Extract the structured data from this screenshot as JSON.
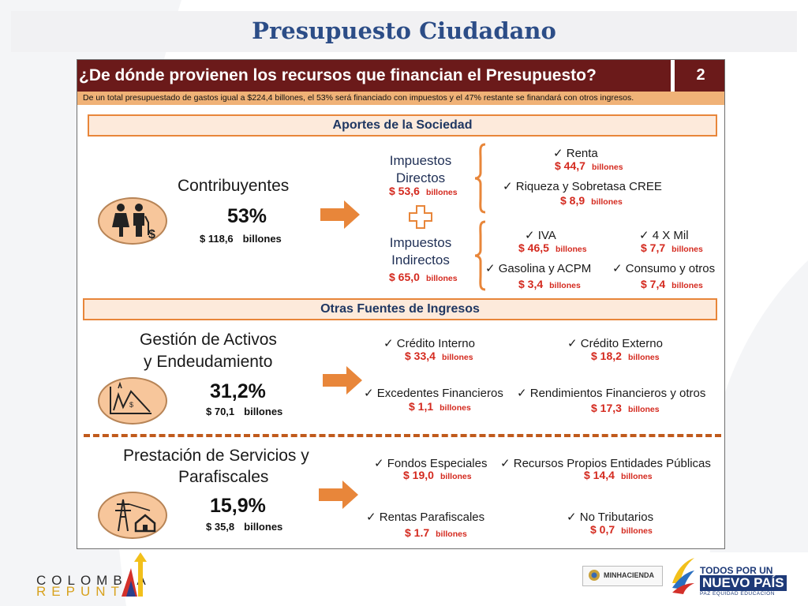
{
  "page": {
    "title": "Presupuesto Ciudadano"
  },
  "header": {
    "question": "¿De dónde provienen los recursos que financian el Presupuesto?",
    "number": "2",
    "summary": "De un total presupuestado de gastos igual a $224,4 billones, el 53% será financiado con impuestos y el 47% restante se finandará con otros ingresos."
  },
  "sections": {
    "aportes": "Aportes de la Sociedad",
    "otras": "Otras Fuentes de Ingresos"
  },
  "contribuyentes": {
    "title": "Contribuyentes",
    "pct": "53%",
    "amount": "$ 118,6",
    "unit": "billones"
  },
  "impuestos": {
    "directos": {
      "label1": "Impuestos",
      "label2": "Directos",
      "amount": "$ 53,6",
      "unit": "billones"
    },
    "indirectos": {
      "label1": "Impuestos",
      "label2": "Indirectos",
      "amount": "$ 65,0",
      "unit": "billones"
    },
    "renta": {
      "label": "✓ Renta",
      "amount": "$ 44,7",
      "unit": "billones"
    },
    "riqueza": {
      "label": "✓ Riqueza y Sobretasa CREE",
      "amount": "$ 8,9",
      "unit": "billones"
    },
    "iva": {
      "label": "✓ IVA",
      "amount": "$ 46,5",
      "unit": "billones"
    },
    "cuatro_mil": {
      "label": "✓ 4 X Mil",
      "amount": "$ 7,7",
      "unit": "billones"
    },
    "gasolina": {
      "label": "✓ Gasolina y ACPM",
      "amount": "$ 3,4",
      "unit": "billones"
    },
    "consumo": {
      "label": "✓ Consumo y otros",
      "amount": "$ 7,4",
      "unit": "billones"
    }
  },
  "gestion": {
    "title1": "Gestión de Activos",
    "title2": "y Endeudamiento",
    "pct": "31,2%",
    "amount": "$ 70,1",
    "unit": "billones",
    "credito_interno": {
      "label": "✓ Crédito Interno",
      "amount": "$ 33,4",
      "unit": "billones"
    },
    "credito_externo": {
      "label": "✓ Crédito Externo",
      "amount": "$ 18,2",
      "unit": "billones"
    },
    "excedentes": {
      "label": "✓ Excedentes Financieros",
      "amount": "$ 1,1",
      "unit": "billones"
    },
    "rendimientos": {
      "label": "✓ Rendimientos Financieros y otros",
      "amount": "$ 17,3",
      "unit": "billones"
    }
  },
  "prestacion": {
    "title1": "Prestación de Servicios  y",
    "title2": "Parafiscales",
    "pct": "15,9%",
    "amount": "$ 35,8",
    "unit": "billones",
    "fondos": {
      "label": "✓ Fondos Especiales",
      "amount": "$ 19,0",
      "unit": "billones"
    },
    "recursos": {
      "label": "✓ Recursos Propios Entidades Públicas",
      "amount": "$ 14,4",
      "unit": "billones"
    },
    "rentas": {
      "label": "✓ Rentas Parafiscales",
      "amount": "$ 1.7",
      "unit": "billones"
    },
    "no_tributarios": {
      "label": "✓ No Tributarios",
      "amount": "$ 0,7",
      "unit": "billones"
    }
  },
  "footer": {
    "colombia_line1": "COLOMBIA",
    "colombia_line2": "REPUNTA",
    "minhacienda": "MINHACIENDA",
    "todos_line1": "TODOS POR UN",
    "todos_line2": "NUEVO PAÍS",
    "todos_line3": "PAZ  EQUIDAD  EDUCACIÓN"
  },
  "colors": {
    "header": "#6b1a1a",
    "subheader": "#f0b277",
    "accent": "#e8863a",
    "value_red": "#d42a1f",
    "title_blue": "#2c4d87"
  },
  "icons": [
    "people-dollar-icon",
    "chart-decline-dollar-icon",
    "power-tower-house-icon",
    "arrow-right-icon",
    "plus-icon",
    "brace-icon"
  ]
}
